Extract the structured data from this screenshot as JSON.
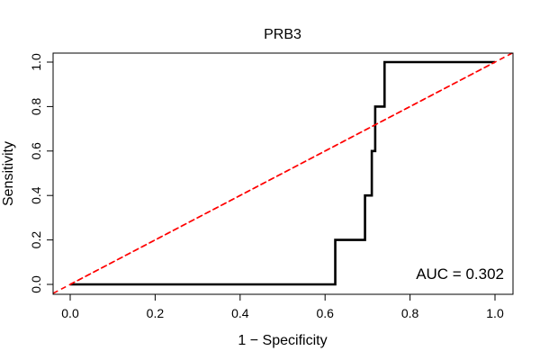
{
  "chart_data": {
    "type": "line",
    "title": "PRB3",
    "xlabel": "1 − Specificity",
    "ylabel": "Sensitivity",
    "xlim": [
      0,
      1
    ],
    "ylim": [
      0,
      1
    ],
    "x_ticks": [
      "0.0",
      "0.2",
      "0.4",
      "0.6",
      "0.8",
      "1.0"
    ],
    "y_ticks": [
      "0.0",
      "0.2",
      "0.4",
      "0.6",
      "0.8",
      "1.0"
    ],
    "grid": false,
    "legend": "none",
    "annotation": "AUC = 0.302",
    "series": [
      {
        "color": "#000000",
        "style": "solid",
        "x": [
          0,
          0.624,
          0.624,
          0.694,
          0.694,
          0.71,
          0.71,
          0.718,
          0.718,
          0.74,
          0.74,
          1.0
        ],
        "y": [
          0,
          0,
          0.2,
          0.2,
          0.4,
          0.4,
          0.6,
          0.6,
          0.8,
          0.8,
          1.0,
          1.0
        ]
      },
      {
        "color": "#ff0000",
        "style": "dashed",
        "x": [
          0,
          1
        ],
        "y": [
          0,
          1
        ]
      }
    ]
  }
}
